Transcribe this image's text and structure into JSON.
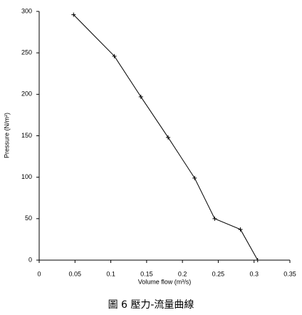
{
  "chart_data": {
    "type": "line",
    "x_label": "Volume flow (m³/s)",
    "y_label": "Pressure (N/m²)",
    "caption": "圖 6  壓力-流量曲線",
    "x": [
      0.048,
      0.105,
      0.142,
      0.18,
      0.217,
      0.245,
      0.281,
      0.305
    ],
    "series": [
      {
        "color": "#000000",
        "values": [
          296,
          246,
          197,
          148,
          99,
          50,
          37,
          0
        ]
      }
    ],
    "xlim": [
      0,
      0.35
    ],
    "xticks": [
      0,
      0.05,
      0.1,
      0.15,
      0.2,
      0.25,
      0.3,
      0.35
    ],
    "ylim": [
      0,
      300
    ],
    "yticks": [
      0,
      50,
      100,
      150,
      200,
      250,
      300
    ],
    "grid": false
  }
}
